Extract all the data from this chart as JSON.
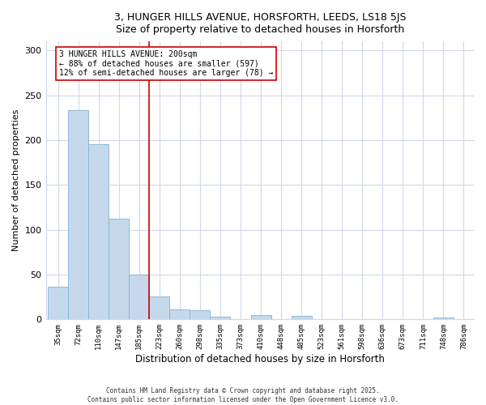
{
  "title": "3, HUNGER HILLS AVENUE, HORSFORTH, LEEDS, LS18 5JS",
  "subtitle": "Size of property relative to detached houses in Horsforth",
  "xlabel": "Distribution of detached houses by size in Horsforth",
  "ylabel": "Number of detached properties",
  "bar_labels": [
    "35sqm",
    "72sqm",
    "110sqm",
    "147sqm",
    "185sqm",
    "223sqm",
    "260sqm",
    "298sqm",
    "335sqm",
    "373sqm",
    "410sqm",
    "448sqm",
    "485sqm",
    "523sqm",
    "561sqm",
    "598sqm",
    "636sqm",
    "673sqm",
    "711sqm",
    "748sqm",
    "786sqm"
  ],
  "bar_values": [
    36,
    233,
    195,
    112,
    50,
    26,
    11,
    10,
    3,
    0,
    5,
    0,
    4,
    0,
    0,
    0,
    0,
    0,
    0,
    2,
    0
  ],
  "bar_color": "#c6d9ec",
  "bar_edge_color": "#7fb3d3",
  "ylim": [
    0,
    310
  ],
  "yticks": [
    0,
    50,
    100,
    150,
    200,
    250,
    300
  ],
  "vline_x": 5.0,
  "vline_color": "#cc0000",
  "annotation_title": "3 HUNGER HILLS AVENUE: 200sqm",
  "annotation_line1": "← 88% of detached houses are smaller (597)",
  "annotation_line2": "12% of semi-detached houses are larger (78) →",
  "footer1": "Contains HM Land Registry data © Crown copyright and database right 2025.",
  "footer2": "Contains public sector information licensed under the Open Government Licence v3.0.",
  "background_color": "#ffffff",
  "plot_bg_color": "#ffffff",
  "grid_color": "#d0d8e8"
}
